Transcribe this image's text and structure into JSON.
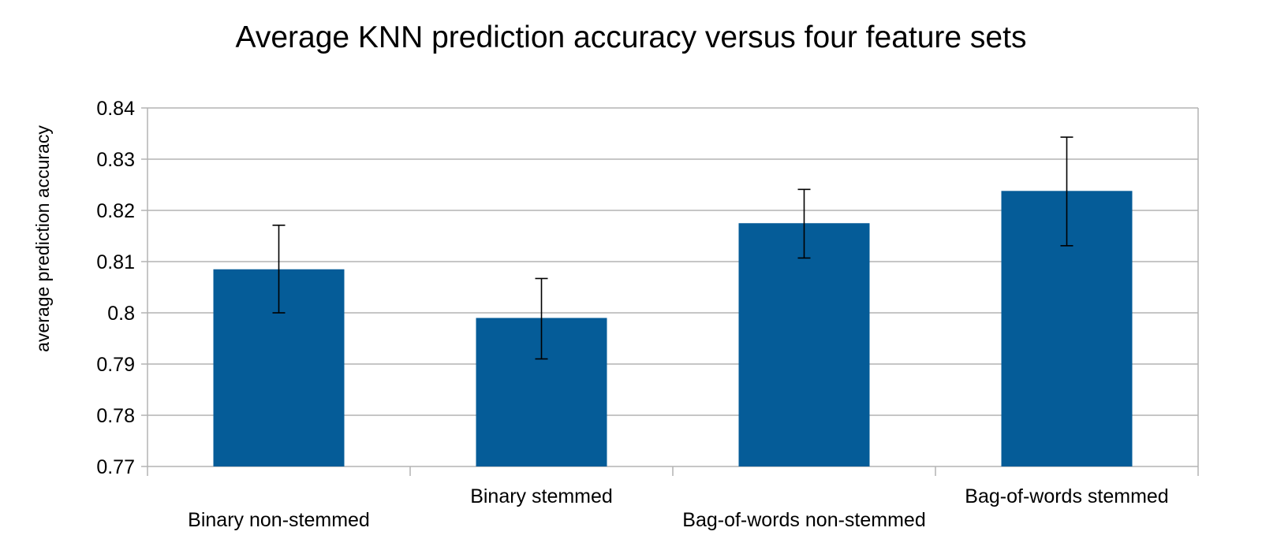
{
  "chart_data": {
    "type": "bar",
    "title": "Average KNN prediction accuracy versus four feature sets",
    "xlabel": "",
    "ylabel": "average prediction accuracy",
    "ylim": [
      0.77,
      0.84
    ],
    "yticks": [
      0.77,
      0.78,
      0.79,
      0.8,
      0.81,
      0.82,
      0.83,
      0.84
    ],
    "ytick_labels": [
      "0.77",
      "0.78",
      "0.79",
      "0.8",
      "0.81",
      "0.82",
      "0.83",
      "0.84"
    ],
    "grid": true,
    "legend": "none",
    "bar_color": "#055c98",
    "categories": [
      "Binary non-stemmed",
      "Binary stemmed",
      "Bag-of-words non-stemmed",
      "Bag-of-words stemmed"
    ],
    "values": [
      0.8085,
      0.799,
      0.8175,
      0.8238
    ],
    "error_low": [
      0.8,
      0.791,
      0.8107,
      0.8131
    ],
    "error_high": [
      0.8171,
      0.8067,
      0.8241,
      0.8343
    ]
  }
}
